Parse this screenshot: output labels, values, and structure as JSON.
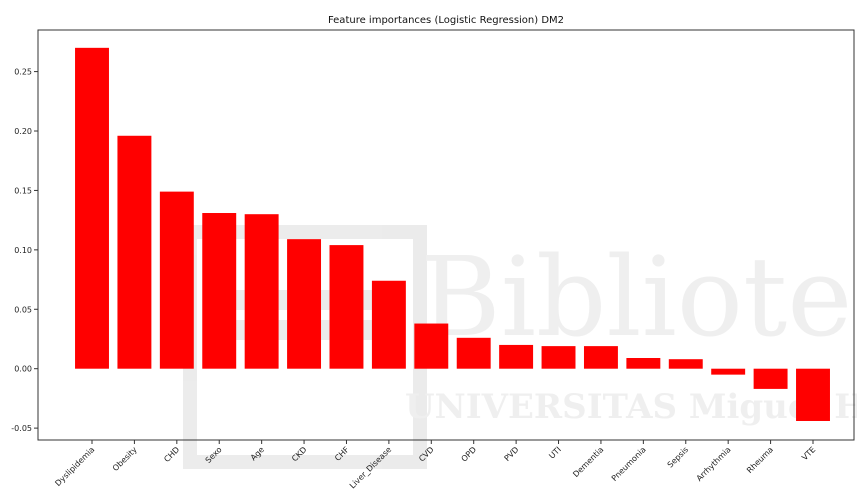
{
  "chart_data": {
    "type": "bar",
    "title": "Feature importances (Logistic Regression) DM2",
    "xlabel": "",
    "ylabel": "",
    "ylim": [
      -0.06,
      0.285
    ],
    "yticks": [
      -0.05,
      0.0,
      0.05,
      0.1,
      0.15,
      0.2,
      0.25
    ],
    "ytick_labels": [
      "-0.05",
      "0.00",
      "0.05",
      "0.10",
      "0.15",
      "0.20",
      "0.25"
    ],
    "grid": false,
    "bar_color": "#ff0000",
    "categories": [
      "Dyslipidemia",
      "Obesity",
      "CHD",
      "Sexo",
      "Age",
      "CKD",
      "CHF",
      "Liver_Disease",
      "CVD",
      "OPD",
      "PVD",
      "UTI",
      "Dementia",
      "Pneumonia",
      "Sepsis",
      "Arrhythmia",
      "Rheuma",
      "VTE"
    ],
    "values": [
      0.27,
      0.196,
      0.149,
      0.131,
      0.13,
      0.109,
      0.104,
      0.074,
      0.038,
      0.026,
      0.02,
      0.019,
      0.019,
      0.009,
      0.008,
      -0.005,
      -0.017,
      -0.044
    ]
  },
  "watermark": {
    "main": "Biblioteca",
    "sub": "UNIVERSITAS Miguel Hernández"
  }
}
